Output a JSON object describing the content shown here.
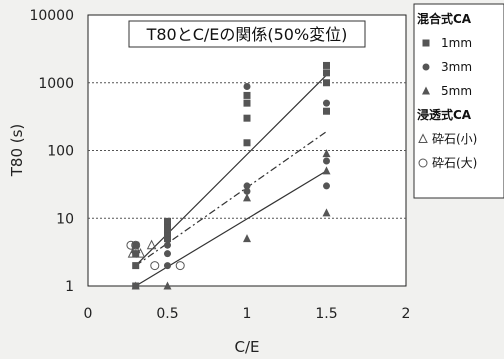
{
  "chart_data": {
    "type": "scatter",
    "title": "T80とC/Eの関係(50%変位)",
    "xlabel": "C/E",
    "ylabel": "T80 (s)",
    "xlim": [
      0,
      2
    ],
    "ylim": [
      1,
      10000
    ],
    "y_scale": "log",
    "x_ticks": [
      "0",
      "0.5",
      "1",
      "1.5",
      "2"
    ],
    "y_ticks": [
      "1",
      "10",
      "100",
      "1000",
      "10000"
    ],
    "grid": "horizontal dotted",
    "legend_position": "right",
    "legend_groups": [
      "混合式CA",
      "浸透式CA"
    ],
    "series": [
      {
        "name": "1mm",
        "group": "混合式CA",
        "marker": "square",
        "color": "#555555",
        "points": [
          [
            0.3,
            1
          ],
          [
            0.3,
            2
          ],
          [
            0.3,
            3
          ],
          [
            0.3,
            4
          ],
          [
            0.5,
            5
          ],
          [
            0.5,
            6
          ],
          [
            0.5,
            7
          ],
          [
            0.5,
            8
          ],
          [
            0.5,
            9
          ],
          [
            1.0,
            130
          ],
          [
            1.0,
            300
          ],
          [
            1.0,
            500
          ],
          [
            1.0,
            650
          ],
          [
            1.5,
            380
          ],
          [
            1.5,
            1000
          ],
          [
            1.5,
            1400
          ],
          [
            1.5,
            1800
          ]
        ]
      },
      {
        "name": "3mm",
        "group": "混合式CA",
        "marker": "circle",
        "color": "#555555",
        "points": [
          [
            0.3,
            3
          ],
          [
            0.5,
            2
          ],
          [
            0.5,
            3
          ],
          [
            0.5,
            4
          ],
          [
            1.0,
            25
          ],
          [
            1.0,
            30
          ],
          [
            1.0,
            880
          ],
          [
            1.5,
            30
          ],
          [
            1.5,
            70
          ],
          [
            1.5,
            500
          ]
        ]
      },
      {
        "name": "5mm",
        "group": "混合式CA",
        "marker": "triangle",
        "color": "#555555",
        "points": [
          [
            0.3,
            1
          ],
          [
            0.5,
            1
          ],
          [
            1.0,
            5
          ],
          [
            1.0,
            20
          ],
          [
            1.5,
            12
          ],
          [
            1.5,
            50
          ],
          [
            1.5,
            90
          ]
        ]
      },
      {
        "name": "砕石(小)",
        "group": "浸透式CA",
        "marker": "triangle-open",
        "color": "#555555",
        "points": [
          [
            0.28,
            3
          ],
          [
            0.3,
            3.5
          ],
          [
            0.33,
            3
          ],
          [
            0.4,
            4
          ]
        ]
      },
      {
        "name": "砕石(大)",
        "group": "浸透式CA",
        "marker": "circle-open",
        "color": "#555555",
        "points": [
          [
            0.27,
            4
          ],
          [
            0.3,
            4
          ],
          [
            0.42,
            2
          ],
          [
            0.58,
            2
          ]
        ]
      }
    ],
    "trend_lines": [
      {
        "style": "solid",
        "from": [
          0.3,
          2
        ],
        "to": [
          1.5,
          1300
        ]
      },
      {
        "style": "dash-dot",
        "from": [
          0.3,
          2
        ],
        "to": [
          1.5,
          190
        ]
      },
      {
        "style": "solid",
        "from": [
          0.3,
          1
        ],
        "to": [
          1.5,
          50
        ]
      }
    ]
  }
}
